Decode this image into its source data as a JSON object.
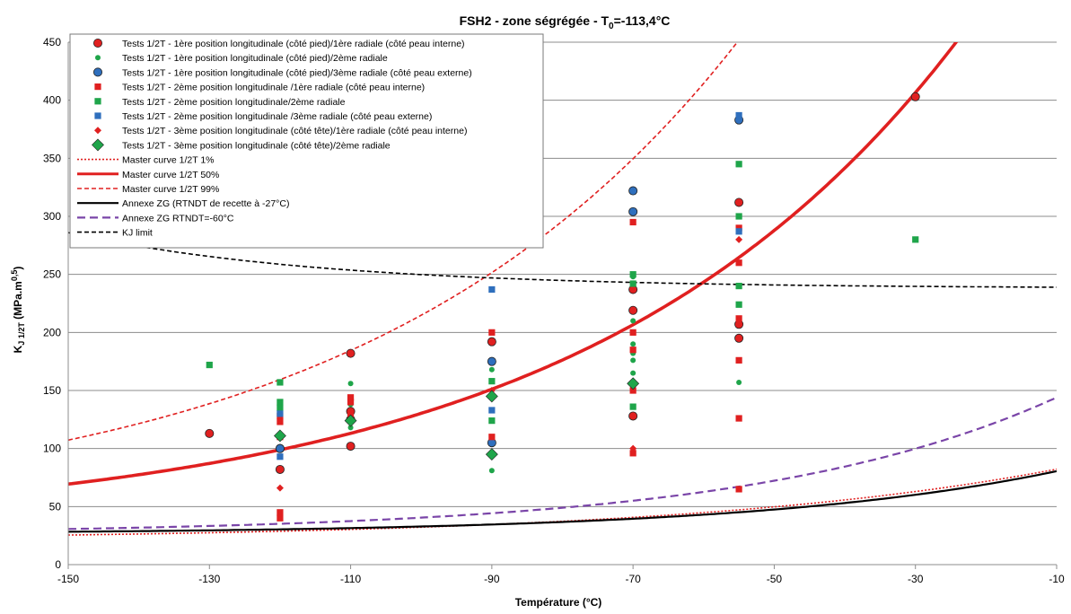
{
  "chart_data": {
    "type": "scatter",
    "title": "FSH2 - zone ségrégée - T",
    "title_sub": "0",
    "title_tail": "=-113,4°C",
    "xlabel": "Température (°C)",
    "ylabel": "K",
    "ylabel_sub": "J 1/2T",
    "ylabel_tail": " (MPa.m",
    "ylabel_sup": "0,5",
    "ylabel_end": ")",
    "xlim": [
      -150,
      -10
    ],
    "ylim": [
      0,
      450
    ],
    "xticks": [
      -150,
      -130,
      -110,
      -90,
      -70,
      -50,
      -30,
      -10
    ],
    "yticks": [
      0,
      50,
      100,
      150,
      200,
      250,
      300,
      350,
      400,
      450
    ],
    "grid": "horizontal",
    "legend_position": "top-left",
    "series": [
      {
        "name": "Tests 1/2T - 1ère position longitudinale (côté pied)/1ère radiale (côté peau interne)",
        "marker": "circle-large",
        "color": "#e02020",
        "points": [
          [
            -130,
            113
          ],
          [
            -120,
            100
          ],
          [
            -120,
            82
          ],
          [
            -110,
            182
          ],
          [
            -110,
            102
          ],
          [
            -110,
            125
          ],
          [
            -110,
            132
          ],
          [
            -90,
            192
          ],
          [
            -70,
            237
          ],
          [
            -70,
            219
          ],
          [
            -70,
            128
          ],
          [
            -55,
            312
          ],
          [
            -55,
            207
          ],
          [
            -55,
            195
          ],
          [
            -30,
            403
          ]
        ]
      },
      {
        "name": "Tests 1/2T - 1ère position longitudinale (côté pied)/2ème radiale",
        "marker": "circle-small",
        "color": "#1fa54a",
        "points": [
          [
            -110,
            156
          ],
          [
            -110,
            138
          ],
          [
            -110,
            127
          ],
          [
            -110,
            118
          ],
          [
            -90,
            176
          ],
          [
            -90,
            168
          ],
          [
            -90,
            81
          ],
          [
            -70,
            248
          ],
          [
            -70,
            210
          ],
          [
            -70,
            190
          ],
          [
            -70,
            182
          ],
          [
            -70,
            176
          ],
          [
            -70,
            165
          ],
          [
            -55,
            157
          ]
        ]
      },
      {
        "name": "Tests 1/2T - 1ère position longitudinale (côté pied)/3ème radiale (côté peau externe)",
        "marker": "circle-large",
        "color": "#2f6fbd",
        "points": [
          [
            -120,
            100
          ],
          [
            -90,
            175
          ],
          [
            -90,
            105
          ],
          [
            -70,
            322
          ],
          [
            -70,
            304
          ],
          [
            -55,
            383
          ]
        ]
      },
      {
        "name": "Tests 1/2T - 2ème position longitudinale /1ère radiale (côté peau interne)",
        "marker": "square",
        "color": "#e02020",
        "points": [
          [
            -120,
            128
          ],
          [
            -120,
            123
          ],
          [
            -120,
            110
          ],
          [
            -120,
            45
          ],
          [
            -120,
            40
          ],
          [
            -110,
            144
          ],
          [
            -110,
            140
          ],
          [
            -110,
            130
          ],
          [
            -90,
            200
          ],
          [
            -90,
            110
          ],
          [
            -70,
            295
          ],
          [
            -70,
            200
          ],
          [
            -70,
            185
          ],
          [
            -70,
            150
          ],
          [
            -70,
            96
          ],
          [
            -55,
            290
          ],
          [
            -55,
            260
          ],
          [
            -55,
            212
          ],
          [
            -55,
            176
          ],
          [
            -55,
            126
          ],
          [
            -55,
            65
          ]
        ]
      },
      {
        "name": "Tests 1/2T - 2ème position longitudinale/2ème radiale",
        "marker": "square",
        "color": "#1fa54a",
        "points": [
          [
            -130,
            172
          ],
          [
            -120,
            157
          ],
          [
            -120,
            140
          ],
          [
            -120,
            135
          ],
          [
            -90,
            158
          ],
          [
            -90,
            124
          ],
          [
            -70,
            250
          ],
          [
            -70,
            242
          ],
          [
            -70,
            136
          ],
          [
            -55,
            345
          ],
          [
            -55,
            300
          ],
          [
            -55,
            240
          ],
          [
            -55,
            224
          ],
          [
            -30,
            280
          ]
        ]
      },
      {
        "name": "Tests 1/2T - 2ème position longitudinale /3ème radiale (côté peau externe)",
        "marker": "square",
        "color": "#2f6fbd",
        "points": [
          [
            -120,
            130
          ],
          [
            -120,
            93
          ],
          [
            -90,
            237
          ],
          [
            -90,
            133
          ],
          [
            -55,
            387
          ],
          [
            -55,
            287
          ]
        ]
      },
      {
        "name": "Tests 1/2T - 3ème position longitudinale (côté tête)/1ère radiale (côté peau interne)",
        "marker": "diamond-small",
        "color": "#e02020",
        "points": [
          [
            -120,
            66
          ],
          [
            -110,
            122
          ],
          [
            -90,
            150
          ],
          [
            -70,
            100
          ],
          [
            -55,
            280
          ]
        ]
      },
      {
        "name": "Tests 1/2T - 3ème position longitudinale (côté tête)/2ème radiale",
        "marker": "diamond-large",
        "color": "#1fa54a",
        "points": [
          [
            -120,
            111
          ],
          [
            -110,
            124
          ],
          [
            -90,
            145
          ],
          [
            -90,
            95
          ],
          [
            -70,
            156
          ]
        ]
      }
    ],
    "curves": [
      {
        "name": "Master curve 1/2T 1%",
        "style": "dotted",
        "color": "#e02020",
        "width": 1.6,
        "formula": "mc",
        "k": 0.1111
      },
      {
        "name": "Master curve 1/2T  50%",
        "style": "solid",
        "color": "#e02020",
        "width": 3.6,
        "formula": "mc",
        "k": 1.0
      },
      {
        "name": "Master curve 1/2T 99%",
        "style": "dashed",
        "color": "#e02020",
        "width": 1.6,
        "formula": "mc",
        "k": 1.766
      },
      {
        "name": "Annexe ZG (RTNDT de recette à -27°C)",
        "style": "solid",
        "color": "#000000",
        "width": 2.2,
        "formula": "zg",
        "rtndt": -27
      },
      {
        "name": "Annexe ZG RTNDT=-60°C",
        "style": "longdash",
        "color": "#7a45a8",
        "width": 2.2,
        "formula": "zg",
        "rtndt": -60
      },
      {
        "name": "KJ limit",
        "style": "dashed",
        "color": "#000000",
        "width": 1.6,
        "formula": "kj"
      }
    ]
  }
}
